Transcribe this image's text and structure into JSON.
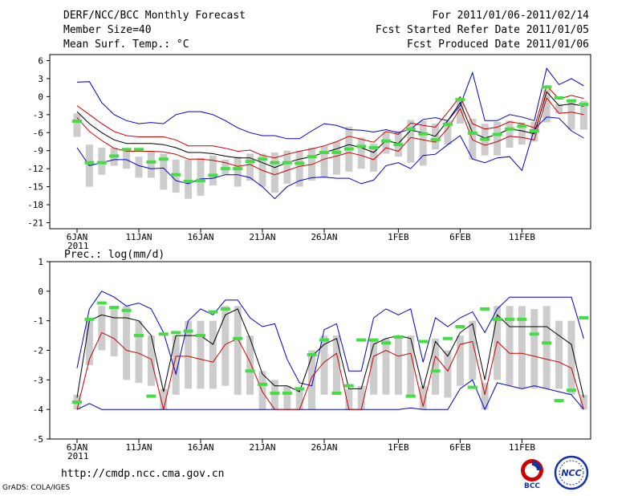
{
  "header": {
    "title": "DERF/NCC/BCC Monthly Forecast",
    "member_size": "Member Size=40",
    "variable1": "Mean Surf. Temp.: °C",
    "variable2": "Prec.: log(mm/d)",
    "for_range": "For 2011/01/06-2011/02/14",
    "fcst_started": "Fcst Started Refer Date 2011/01/05",
    "fcst_produced": "Fcst Produced Date 2011/01/06"
  },
  "footer": {
    "url": "http://cmdp.ncc.cma.gov.cn",
    "grads": "GrADS: COLA/IGES",
    "logo1": "BCC",
    "logo2": "NCC"
  },
  "colors": {
    "envelope": "#0000cc",
    "spread": "#cc0000",
    "mean": "#000000",
    "box": "#cccccc",
    "median": "#44dd44"
  },
  "chart_data": [
    {
      "type": "line",
      "title": "Mean Surf. Temp.: °C",
      "xtick_labels": [
        "6JAN",
        "11JAN",
        "16JAN",
        "21JAN",
        "26JAN",
        "1FEB",
        "6FEB",
        "11FEB"
      ],
      "xtick_days": [
        1,
        6,
        11,
        16,
        21,
        27,
        32,
        37
      ],
      "year_label": "2011",
      "ylim": [
        -22,
        7
      ],
      "yticks": [
        6,
        3,
        0,
        -3,
        -6,
        -9,
        -12,
        -15,
        -18,
        -21
      ],
      "series": [
        {
          "name": "max",
          "values": [
            2.4,
            2.5,
            -1,
            -3,
            -4,
            -4.5,
            -4.3,
            -4.5,
            -3,
            -2.5,
            -2.5,
            -3,
            -4,
            -5.2,
            -6,
            -6.5,
            -6.5,
            -7,
            -7,
            -5.7,
            -4.5,
            -4.8,
            -5.5,
            -5.6,
            -5.9,
            -5.5,
            -6,
            -5.4,
            -3.8,
            -3.5,
            -4,
            -1.5,
            4,
            -4,
            -4,
            -3,
            -3.4,
            -4,
            4.7,
            2,
            3,
            1.8
          ]
        },
        {
          "name": "upper",
          "values": [
            -1.5,
            -3,
            -4.5,
            -5.8,
            -6.5,
            -6.7,
            -6.7,
            -6.7,
            -7.2,
            -8.2,
            -8.2,
            -8.2,
            -8.6,
            -9.1,
            -8.9,
            -9.8,
            -10.2,
            -9.6,
            -9.1,
            -8.7,
            -8.2,
            -7.5,
            -6.6,
            -7.1,
            -7.6,
            -5.8,
            -6.3,
            -4.4,
            -4.8,
            -5.1,
            -2.6,
            0,
            -4.5,
            -5.4,
            -5.1,
            -4.2,
            -4.5,
            -5.2,
            1.8,
            -0.4,
            0.2,
            -0.3
          ]
        },
        {
          "name": "mean",
          "values": [
            -2.5,
            -4.5,
            -6,
            -7.2,
            -7.8,
            -7.8,
            -7.8,
            -8,
            -8.5,
            -9.3,
            -9.3,
            -9.5,
            -9.9,
            -10.2,
            -10.2,
            -11,
            -11.8,
            -11,
            -10.4,
            -10,
            -9.3,
            -8.7,
            -8,
            -8.5,
            -9.3,
            -7.3,
            -7.8,
            -5.6,
            -6,
            -6.6,
            -4,
            -1,
            -6,
            -6.9,
            -6.3,
            -5.4,
            -5.7,
            -6.2,
            0.8,
            -1.5,
            -1.2,
            -1.6
          ]
        },
        {
          "name": "lower",
          "values": [
            -3.5,
            -5.8,
            -7.3,
            -8.6,
            -9.1,
            -9.1,
            -9.1,
            -9.2,
            -9.6,
            -10.4,
            -10.4,
            -10.6,
            -11,
            -11.6,
            -11.3,
            -12.3,
            -13,
            -12.3,
            -11.6,
            -11.3,
            -10.4,
            -9.9,
            -9.3,
            -9.8,
            -10.5,
            -8.5,
            -9.1,
            -6.8,
            -7.2,
            -7.6,
            -5.3,
            -2,
            -7.2,
            -8.1,
            -7.5,
            -6.6,
            -6.8,
            -7.2,
            -0.2,
            -2.8,
            -2.6,
            -3
          ]
        },
        {
          "name": "min",
          "values": [
            -8.5,
            -11.5,
            -11,
            -10.5,
            -10.5,
            -11.5,
            -12,
            -11.9,
            -14,
            -14.5,
            -13.7,
            -13.6,
            -13,
            -13,
            -13.5,
            -15,
            -17,
            -15,
            -14,
            -13.5,
            -13.4,
            -13.6,
            -13.6,
            -14.5,
            -13.9,
            -11.5,
            -11,
            -12,
            -9.8,
            -9.6,
            -8,
            -6.5,
            -10.4,
            -11,
            -10.2,
            -10,
            -12.3,
            -5.4,
            -3.4,
            -3.6,
            -5.7,
            -6.9
          ]
        },
        {
          "name": "box_top",
          "values": [
            -2.8,
            -8,
            -8.5,
            -8.5,
            -9,
            -10,
            -9.2,
            -9.5,
            -10.5,
            -10.5,
            -10.2,
            -9.8,
            -10.5,
            -10,
            -9.5,
            -9.5,
            -9.3,
            -9,
            -9,
            -8.5,
            -8.2,
            -7.5,
            -5,
            -6.8,
            -7.8,
            -5.8,
            -5.7,
            -3.9,
            -4,
            -4.5,
            -4,
            -0.5,
            -3.7,
            -4.5,
            -4.2,
            -4,
            -4.3,
            -4.2,
            1.2,
            -1.2,
            -0.7,
            -0.7
          ]
        },
        {
          "name": "box_bottom",
          "values": [
            -6.7,
            -15,
            -13,
            -11.5,
            -12,
            -13.5,
            -13.5,
            -15.5,
            -16,
            -17,
            -16.5,
            -14.8,
            -13,
            -15,
            -14,
            -15,
            -16,
            -14.5,
            -15,
            -14,
            -13.5,
            -13,
            -12.5,
            -12,
            -12.5,
            -9.5,
            -10,
            -11,
            -11.5,
            -8.8,
            -8,
            -4.5,
            -10.5,
            -9.8,
            -9.8,
            -8.5,
            -8,
            -7.5,
            -4.3,
            -2.8,
            -5.5,
            -5.5
          ]
        },
        {
          "name": "median",
          "values": [
            -4.1,
            -11,
            -11,
            -9.9,
            -8.8,
            -8.8,
            -10.9,
            -10.4,
            -13,
            -14.1,
            -14,
            -13.1,
            -12,
            -12,
            -10.8,
            -10.4,
            -11,
            -11,
            -11.1,
            -10,
            -9.3,
            -9.3,
            -8.7,
            -8.3,
            -8.5,
            -7.4,
            -8,
            -5.4,
            -6.2,
            -7.2,
            -4.6,
            -0.5,
            -6.1,
            -7.1,
            -6.3,
            -5.4,
            -4.9,
            -5.7,
            1.6,
            -0.2,
            -0.7,
            -1.3
          ]
        }
      ]
    },
    {
      "type": "line",
      "title": "Prec.: log(mm/d)",
      "xtick_labels": [
        "6JAN",
        "11JAN",
        "16JAN",
        "21JAN",
        "26JAN",
        "1FEB",
        "6FEB",
        "11FEB"
      ],
      "xtick_days": [
        1,
        6,
        11,
        16,
        21,
        27,
        32,
        37
      ],
      "year_label": "2011",
      "ylim": [
        -5,
        1
      ],
      "yticks": [
        1,
        0,
        -1,
        -2,
        -3,
        -4,
        -5
      ],
      "series": [
        {
          "name": "max",
          "values": [
            -2.6,
            -0.6,
            0,
            -0.2,
            -0.5,
            -0.4,
            -0.6,
            -1.4,
            -2.8,
            -1,
            -0.6,
            -0.8,
            -0.3,
            -0.3,
            -0.9,
            -1.2,
            -1.1,
            -2.3,
            -3.1,
            -3.2,
            -1.3,
            -1.1,
            -2.7,
            -2.7,
            -0.9,
            -0.6,
            -0.8,
            -0.6,
            -2.4,
            -0.9,
            -1.2,
            -0.9,
            -0.7,
            -1.4,
            -0.6,
            -0.2,
            -0.2,
            -0.2,
            -0.2,
            -0.2,
            -0.2,
            -1.6
          ]
        },
        {
          "name": "mean",
          "values": [
            -3.6,
            -1,
            -0.8,
            -0.9,
            -0.9,
            -1,
            -1.5,
            -3.4,
            -1.5,
            -1.5,
            -1.5,
            -1.8,
            -0.8,
            -0.6,
            -1.6,
            -2.8,
            -3.2,
            -3.2,
            -3.4,
            -2.2,
            -1.8,
            -1.6,
            -3.3,
            -3.3,
            -1.8,
            -1.6,
            -1.5,
            -1.6,
            -3.3,
            -1.7,
            -2.2,
            -1.4,
            -1.1,
            -3,
            -0.8,
            -1.2,
            -1.2,
            -1.2,
            -1.2,
            -1.5,
            -1.8,
            -3.6
          ]
        },
        {
          "name": "lower",
          "values": [
            -4,
            -2.3,
            -1.4,
            -1.6,
            -2,
            -2.1,
            -2.3,
            -4,
            -2.2,
            -2.2,
            -2.3,
            -2.4,
            -1.8,
            -1.6,
            -2.4,
            -3.4,
            -4,
            -4,
            -4,
            -2.9,
            -2.4,
            -2.1,
            -4,
            -4,
            -2.2,
            -2,
            -2.2,
            -2.1,
            -3.9,
            -2.2,
            -2.7,
            -1.8,
            -1.7,
            -3.5,
            -1.7,
            -2.1,
            -2.1,
            -2.2,
            -2.3,
            -2.4,
            -2.6,
            -4
          ]
        },
        {
          "name": "min",
          "values": [
            -4,
            -3.8,
            -4,
            -4,
            -4,
            -4,
            -4,
            -4,
            -4,
            -4,
            -4,
            -4,
            -4,
            -4,
            -4,
            -4,
            -4,
            -4,
            -4,
            -4,
            -4,
            -4,
            -4,
            -4,
            -4,
            -4,
            -4,
            -3.95,
            -4,
            -4,
            -4,
            -3.3,
            -3,
            -4,
            -3.1,
            -3.2,
            -3.3,
            -3.2,
            -3.3,
            -3.4,
            -3.5,
            -4
          ]
        },
        {
          "name": "box_top",
          "values": [
            -3.5,
            -1,
            -0.5,
            -0.5,
            -0.5,
            -1,
            -1.5,
            -3.3,
            -1.5,
            -1,
            -1,
            -1,
            -0.5,
            -0.5,
            -1.5,
            -2.7,
            -3,
            -3.2,
            -3.3,
            -2,
            -1.5,
            -1.5,
            -3.3,
            -3.2,
            -1.6,
            -1.6,
            -1.5,
            -1.5,
            -3.2,
            -1.6,
            -2,
            -1.5,
            -1,
            -3.1,
            -0.5,
            -0.5,
            -0.5,
            -0.6,
            -0.5,
            -1,
            -1,
            -3.5
          ]
        },
        {
          "name": "box_bottom",
          "values": [
            -4,
            -2.5,
            -2,
            -2.2,
            -3,
            -3.1,
            -3.2,
            -4,
            -3.5,
            -3.3,
            -3.3,
            -3.3,
            -3.2,
            -3.5,
            -3.5,
            -4,
            -4,
            -4,
            -4,
            -4,
            -3.5,
            -3.5,
            -4,
            -4,
            -3.5,
            -3.5,
            -3.5,
            -3.5,
            -4,
            -3.5,
            -3.6,
            -3.2,
            -3,
            -4,
            -3,
            -3.2,
            -3.3,
            -3.3,
            -3.3,
            -3.3,
            -3.5,
            -4
          ]
        },
        {
          "name": "median",
          "values": [
            -3.75,
            -0.95,
            -0.4,
            -0.55,
            -0.65,
            -1.5,
            -3.55,
            -1.45,
            -1.4,
            -1.35,
            -1.5,
            -0.7,
            -0.6,
            -1.6,
            -2.7,
            -3.15,
            -3.45,
            -3.45,
            -3.3,
            -2.15,
            -1.65,
            -3.45,
            -3.2,
            -1.65,
            -1.65,
            -1.75,
            -1.55,
            -3.55,
            -1.7,
            -2.7,
            -1.6,
            -1.2,
            -3.25,
            -0.6,
            -0.95,
            -0.95,
            -0.95,
            -1.45,
            -1.75,
            -3.7,
            -3.35,
            -0.9
          ]
        }
      ]
    }
  ]
}
